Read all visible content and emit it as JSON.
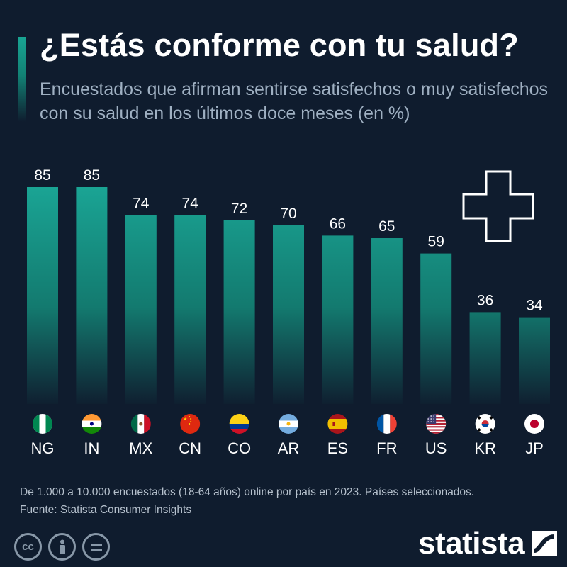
{
  "header": {
    "title": "¿Estás conforme con tu salud?",
    "subtitle": "Encuestados que afirman sentirse satisfechos o muy satisfechos con su salud en los últimos doce meses (en %)"
  },
  "chart_data": {
    "type": "bar",
    "title": "¿Estás conforme con tu salud?",
    "subtitle": "Encuestados que afirman sentirse satisfechos o muy satisfechos con su salud en los últimos doce meses (en %)",
    "categories": [
      "NG",
      "IN",
      "MX",
      "CN",
      "CO",
      "AR",
      "ES",
      "FR",
      "US",
      "KR",
      "JP"
    ],
    "values": [
      85,
      85,
      74,
      74,
      72,
      70,
      66,
      65,
      59,
      36,
      34
    ],
    "flags": [
      "nigeria-flag",
      "india-flag",
      "mexico-flag",
      "china-flag",
      "colombia-flag",
      "argentina-flag",
      "spain-flag",
      "france-flag",
      "usa-flag",
      "south-korea-flag",
      "japan-flag"
    ],
    "xlabel": "",
    "ylabel": "",
    "ylim": [
      0,
      85
    ],
    "grid": false,
    "colors": {
      "bar_top": "#1aa595",
      "bar_bottom": "#0f1c2e",
      "background": "#0f1c2e"
    }
  },
  "decoration": {
    "icon": "medical-cross-icon"
  },
  "footer": {
    "note": "De 1.000 a 10.000 encuestados (18-64 años) online por país en 2023. Países seleccionados.",
    "source": "Fuente: Statista Consumer Insights",
    "license_icons": [
      "cc-icon",
      "by-icon",
      "nd-icon"
    ],
    "brand": "statista"
  }
}
